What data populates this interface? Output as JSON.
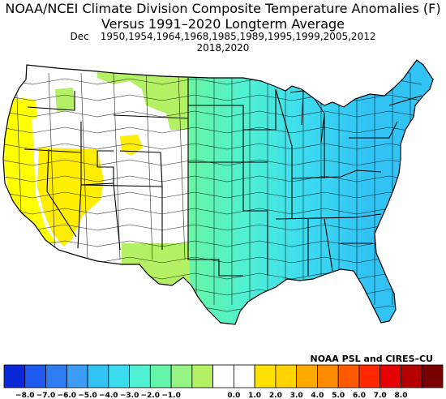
{
  "title": {
    "line1": "NOAA/NCEI Climate Division Composite Temperature Anomalies (F)",
    "line2": "Versus 1991–2020 Longterm Average",
    "month": "Dec",
    "years_line1": "1950,1954,1964,1968,1985,1989,1995,1999,2005,2012",
    "years_line2": "2018,2020"
  },
  "credit": "NOAA PSL and CIRES–CU",
  "legend": {
    "colors": [
      "#0a28d8",
      "#1e5af0",
      "#2d7df5",
      "#3c9bf5",
      "#32c3f5",
      "#3cdcf0",
      "#50f0d2",
      "#64f5aa",
      "#96f582",
      "#b4f064",
      "#ffffff",
      "#ffffff",
      "#ffe100",
      "#ffd200",
      "#ffaa00",
      "#ff8c00",
      "#ff5a00",
      "#ff2800",
      "#e60000",
      "#b40000",
      "#780000"
    ],
    "ticks": [
      "−8.0",
      "−7.0",
      "−6.0",
      "−5.0",
      "−4.0",
      "−3.0",
      "−2.0",
      "−1.0",
      "0.0",
      "1.0",
      "2.0",
      "3.0",
      "4.0",
      "5.0",
      "6.0",
      "7.0",
      "8.0"
    ]
  },
  "map_colors": {
    "west_coast": "#ffff00",
    "great_basin": "#ffee00",
    "neutral": "#ffffff",
    "plains_green": "#b4f064",
    "plains_lime": "#96f582",
    "central_green": "#64f5aa",
    "east_teal": "#50f0d2",
    "east_cyan": "#3cdcf0",
    "northeast_blue": "#32c3f5"
  }
}
